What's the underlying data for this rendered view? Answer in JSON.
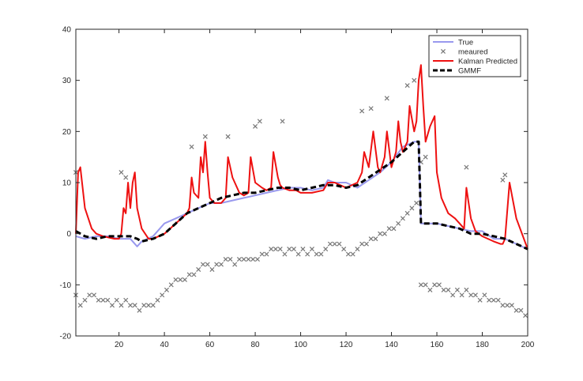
{
  "chart_data": {
    "type": "line",
    "title": "",
    "xlabel": "",
    "ylabel": "",
    "xlim": [
      1,
      200
    ],
    "ylim": [
      -20,
      40
    ],
    "x_ticks": [
      20,
      40,
      60,
      80,
      100,
      120,
      140,
      160,
      180,
      200
    ],
    "y_ticks": [
      -20,
      -10,
      0,
      10,
      20,
      30,
      40
    ],
    "grid": false,
    "legend_position": "top-right",
    "series": [
      {
        "name": "True",
        "style": "line",
        "color": "#9999ee",
        "x": [
          1,
          5,
          10,
          15,
          20,
          25,
          28,
          30,
          35,
          40,
          45,
          50,
          55,
          60,
          65,
          70,
          75,
          80,
          85,
          90,
          95,
          100,
          105,
          110,
          112,
          115,
          120,
          125,
          130,
          135,
          140,
          145,
          150,
          152,
          153,
          155,
          160,
          165,
          170,
          175,
          180,
          185,
          190,
          195,
          200
        ],
        "y": [
          -0.5,
          -1,
          -0.5,
          -0.5,
          -1,
          -1,
          -2.5,
          -1.5,
          -0.5,
          2,
          3,
          4,
          5,
          6,
          6,
          6.5,
          7,
          7.5,
          8,
          8.5,
          9,
          9,
          8.5,
          9,
          10.5,
          10,
          10,
          9,
          10.5,
          12,
          14,
          17,
          18,
          18,
          2,
          2,
          2,
          1.5,
          1,
          0.5,
          0.5,
          -1,
          -1,
          -2,
          -3
        ]
      },
      {
        "name": "meaured",
        "style": "marker",
        "color": "#777777",
        "marker": "x",
        "x": [
          1,
          3,
          5,
          7,
          9,
          11,
          13,
          15,
          17,
          19,
          21,
          23,
          25,
          27,
          29,
          31,
          33,
          35,
          37,
          39,
          41,
          43,
          45,
          47,
          49,
          51,
          53,
          55,
          57,
          59,
          61,
          63,
          65,
          67,
          69,
          71,
          73,
          75,
          77,
          79,
          81,
          83,
          85,
          87,
          89,
          91,
          93,
          95,
          97,
          99,
          101,
          103,
          105,
          107,
          109,
          111,
          113,
          115,
          117,
          119,
          121,
          123,
          125,
          127,
          129,
          131,
          133,
          135,
          137,
          139,
          141,
          143,
          145,
          147,
          149,
          151,
          153,
          155,
          157,
          159,
          161,
          163,
          165,
          167,
          169,
          171,
          173,
          175,
          177,
          179,
          181,
          183,
          185,
          187,
          189,
          191,
          193,
          195,
          197,
          199,
          1,
          21,
          23,
          52,
          58,
          68,
          80,
          82,
          92,
          127,
          131,
          138,
          147,
          150,
          153,
          155,
          173,
          189,
          190
        ],
        "y": [
          -12,
          -14,
          -13,
          -12,
          -12,
          -13,
          -13,
          -13,
          -14,
          -13,
          -14,
          -13,
          -14,
          -14,
          -15,
          -14,
          -14,
          -14,
          -13,
          -12,
          -11,
          -10,
          -9,
          -9,
          -9,
          -8,
          -8,
          -7,
          -6,
          -6,
          -7,
          -6,
          -6,
          -5,
          -5,
          -6,
          -5,
          -5,
          -5,
          -5,
          -5,
          -4,
          -4,
          -3,
          -3,
          -3,
          -4,
          -3,
          -3,
          -4,
          -3,
          -4,
          -3,
          -4,
          -4,
          -3,
          -2,
          -2,
          -2,
          -3,
          -4,
          -4,
          -3,
          -2,
          -2,
          -1,
          -1,
          0,
          0,
          1,
          1,
          2,
          3,
          4,
          5,
          6,
          -10,
          -10,
          -11,
          -10,
          -10,
          -11,
          -11,
          -12,
          -11,
          -12,
          -11,
          -12,
          -12,
          -13,
          -12,
          -13,
          -13,
          -13,
          -14,
          -14,
          -14,
          -15,
          -15,
          -16,
          12,
          12,
          11,
          17,
          19,
          19,
          21,
          22,
          22,
          24,
          24.5,
          26.5,
          29,
          30,
          14,
          15,
          13,
          10.5,
          11.5
        ]
      },
      {
        "name": "Kalman Predicted",
        "style": "line",
        "color": "#ee1111",
        "x": [
          1,
          2,
          3,
          5,
          8,
          10,
          13,
          18,
          20,
          21,
          22,
          23,
          24,
          25,
          26,
          27,
          28,
          30,
          33,
          35,
          40,
          45,
          50,
          51,
          52,
          53,
          55,
          56,
          57,
          58,
          59,
          60,
          62,
          65,
          67,
          68,
          70,
          73,
          75,
          77,
          78,
          80,
          83,
          85,
          87,
          88,
          90,
          91,
          92,
          95,
          98,
          100,
          105,
          110,
          112,
          115,
          120,
          125,
          127,
          128,
          130,
          132,
          134,
          135,
          137,
          138,
          140,
          142,
          143,
          144,
          145,
          147,
          148,
          150,
          151,
          152,
          153,
          154,
          155,
          157,
          159,
          160,
          162,
          165,
          168,
          170,
          172,
          173,
          175,
          177,
          180,
          185,
          188,
          189,
          190,
          192,
          195,
          200
        ],
        "y": [
          0,
          12,
          13,
          5,
          1,
          0,
          -0.5,
          -1,
          -1,
          0,
          5,
          4,
          10,
          5,
          10,
          12,
          5,
          1,
          -1,
          -1,
          0,
          2,
          4,
          5,
          11,
          8,
          7,
          15,
          12,
          18,
          12,
          7,
          6,
          6,
          7,
          15,
          11,
          8,
          7.5,
          8,
          15,
          10,
          9,
          8.5,
          9,
          16,
          11,
          9.5,
          9,
          8.5,
          8.5,
          8,
          8,
          8.5,
          10,
          10,
          9,
          10,
          12,
          16,
          13,
          20,
          13,
          12,
          15,
          20,
          13,
          16,
          22,
          18,
          16,
          18,
          25,
          20,
          22,
          30,
          33,
          25,
          18,
          21,
          23,
          12,
          7,
          4,
          3,
          2,
          1,
          9,
          3,
          0.5,
          -0.5,
          -1.5,
          -2,
          -2,
          -1,
          10,
          3,
          -3
        ]
      },
      {
        "name": "GMMF",
        "style": "dashed",
        "color": "#000000",
        "x": [
          1,
          5,
          10,
          15,
          20,
          25,
          28,
          30,
          35,
          40,
          45,
          50,
          55,
          60,
          65,
          70,
          75,
          80,
          85,
          90,
          95,
          100,
          105,
          110,
          115,
          120,
          125,
          130,
          135,
          140,
          145,
          150,
          152,
          153,
          155,
          160,
          165,
          170,
          175,
          180,
          185,
          190,
          195,
          200
        ],
        "y": [
          0.5,
          -0.5,
          -1,
          -0.5,
          -0.5,
          -0.5,
          -1,
          -1.5,
          -1,
          0,
          2,
          4,
          5,
          6,
          7,
          7.5,
          8,
          8,
          8.5,
          9,
          9,
          8.5,
          9,
          9.5,
          9.5,
          9,
          9.5,
          11,
          12.5,
          14,
          16,
          18,
          18,
          2,
          2,
          2,
          1.5,
          1,
          0,
          0,
          -0.5,
          -1,
          -2,
          -3
        ]
      }
    ]
  }
}
